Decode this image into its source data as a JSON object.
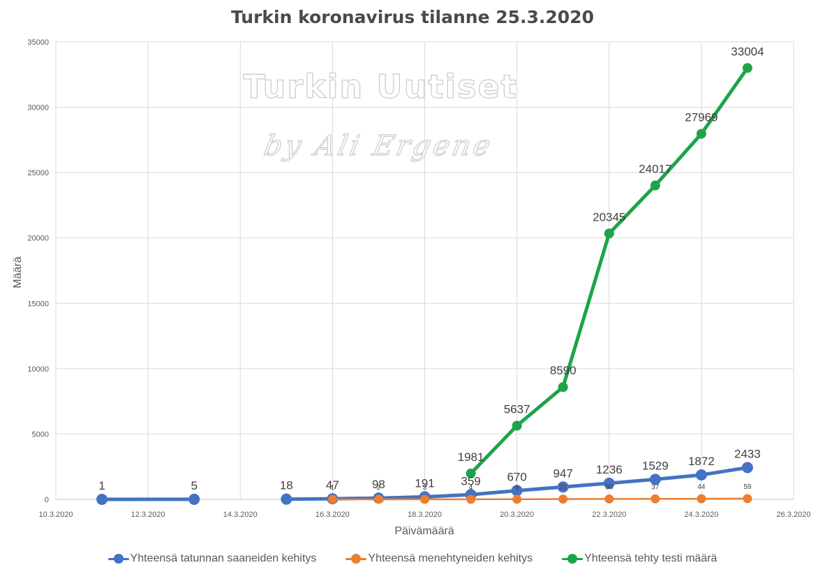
{
  "chart_data": {
    "type": "line",
    "title": "Turkin koronavirus tilanne 25.3.2020",
    "xlabel": "Päivämäärä",
    "ylabel": "Määrä",
    "xlim": [
      "10.3.2020",
      "26.3.2020"
    ],
    "ylim": [
      0,
      35000
    ],
    "x_ticks": [
      "10.3.2020",
      "12.3.2020",
      "14.3.2020",
      "16.3.2020",
      "18.3.2020",
      "20.3.2020",
      "22.3.2020",
      "24.3.2020",
      "26.3.2020"
    ],
    "y_ticks": [
      0,
      5000,
      10000,
      15000,
      20000,
      25000,
      30000,
      35000
    ],
    "grid": true,
    "legend_position": "bottom",
    "series": [
      {
        "name": "Yhteensä tatunnan saaneiden kehitys",
        "color": "#4472C4",
        "segments": [
          [
            [
              "11.3.2020",
              1
            ],
            [
              "13.3.2020",
              5
            ]
          ],
          [
            [
              "15.3.2020",
              18
            ],
            [
              "16.3.2020",
              47
            ],
            [
              "17.3.2020",
              98
            ],
            [
              "18.3.2020",
              191
            ],
            [
              "19.3.2020",
              359
            ],
            [
              "20.3.2020",
              670
            ],
            [
              "21.3.2020",
              947
            ],
            [
              "22.3.2020",
              1236
            ],
            [
              "23.3.2020",
              1529
            ],
            [
              "24.3.2020",
              1872
            ],
            [
              "25.3.2020",
              2433
            ]
          ]
        ],
        "labels": [
          "1",
          "5",
          "18",
          "47",
          "98",
          "191",
          "359",
          "670",
          "947",
          "1236",
          "1529",
          "1872",
          "2433"
        ]
      },
      {
        "name": "Yhteensä menehtyneiden kehitys",
        "color": "#ED7D31",
        "segments": [
          [
            [
              "16.3.2020",
              1
            ],
            [
              "17.3.2020",
              2
            ],
            [
              "18.3.2020",
              3
            ],
            [
              "19.3.2020",
              4
            ],
            [
              "20.3.2020",
              9
            ],
            [
              "21.3.2020",
              21
            ],
            [
              "22.3.2020",
              30
            ],
            [
              "23.3.2020",
              37
            ],
            [
              "24.3.2020",
              44
            ],
            [
              "25.3.2020",
              59
            ]
          ]
        ],
        "labels": [
          "1",
          "2",
          "3",
          "4",
          "9",
          "21",
          "30",
          "37",
          "44",
          "59"
        ]
      },
      {
        "name": "Yhteensä tehty testi määrä",
        "color": "#1DA44A",
        "segments": [
          [
            [
              "19.3.2020",
              1981
            ],
            [
              "20.3.2020",
              5637
            ],
            [
              "21.3.2020",
              8590
            ],
            [
              "22.3.2020",
              20345
            ],
            [
              "23.3.2020",
              24017
            ],
            [
              "24.3.2020",
              27969
            ],
            [
              "25.3.2020",
              33004
            ]
          ]
        ],
        "labels": [
          "1981",
          "5637",
          "8590",
          "20345",
          "24017",
          "27969",
          "33004"
        ]
      }
    ]
  },
  "watermark": {
    "line1": "Turkin Uutiset",
    "line2": "by Ali Ergene"
  }
}
